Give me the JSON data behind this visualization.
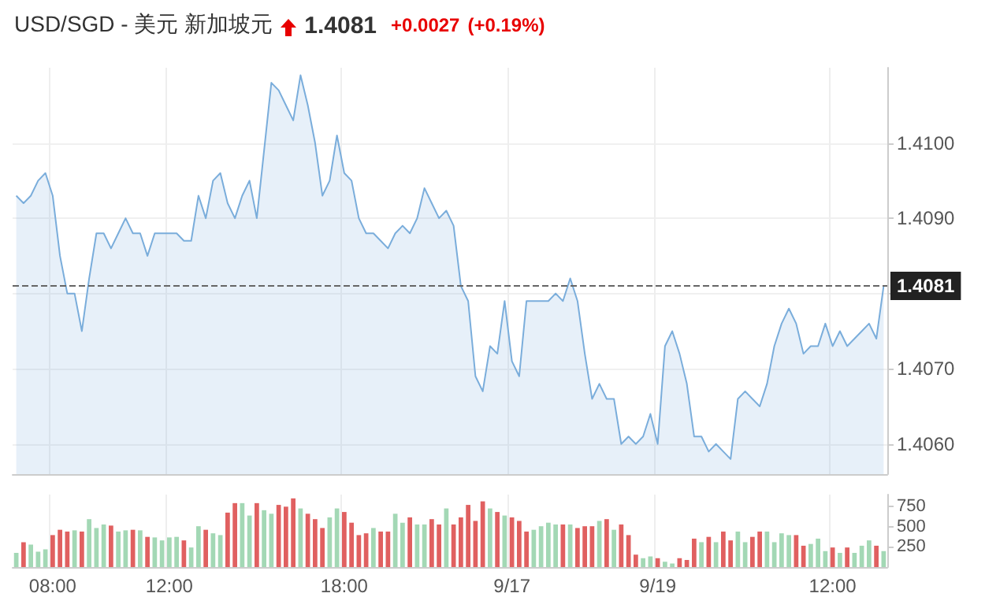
{
  "chart_data": [
    {
      "type": "area",
      "title": "USD/SGD - 美元 新加坡元",
      "annotations": [
        "1.4081",
        "+0.0027",
        "(+0.19%)"
      ],
      "categories": [
        null,
        null,
        null,
        null,
        null,
        null,
        null,
        null,
        null,
        null,
        null,
        null,
        null,
        null,
        null,
        null,
        null,
        null,
        null,
        null,
        null,
        null,
        null,
        null,
        null,
        null,
        null,
        null,
        null,
        null,
        null,
        null,
        null,
        null,
        null,
        null,
        null,
        null,
        null,
        null,
        null,
        null,
        null,
        null,
        null,
        null,
        null,
        null,
        null,
        null,
        null,
        null,
        null,
        null,
        null,
        null,
        null,
        null,
        null,
        null,
        null,
        null,
        null,
        null,
        null,
        null,
        null,
        null,
        null,
        null,
        null,
        null,
        null,
        null,
        null,
        null,
        null,
        null,
        null,
        null,
        null,
        null,
        null,
        null,
        null,
        null,
        null,
        null,
        null,
        null,
        null,
        null,
        null,
        null,
        null,
        null,
        null,
        null,
        null,
        null,
        null,
        null,
        null,
        null,
        null,
        null,
        null,
        null,
        null,
        null,
        null,
        null,
        null,
        null,
        null,
        null,
        null,
        null,
        null,
        null
      ],
      "values": [
        1.4093,
        1.4092,
        1.4093,
        1.4095,
        1.4096,
        1.4093,
        1.4085,
        1.408,
        1.408,
        1.4075,
        1.4082,
        1.4088,
        1.4088,
        1.4086,
        1.4088,
        1.409,
        1.4088,
        1.4088,
        1.4085,
        1.4088,
        1.4088,
        1.4088,
        1.4088,
        1.4087,
        1.4087,
        1.4093,
        1.409,
        1.4095,
        1.4096,
        1.4092,
        1.409,
        1.4093,
        1.4095,
        1.409,
        1.4099,
        1.4108,
        1.4107,
        1.4105,
        1.4103,
        1.4109,
        1.4105,
        1.41,
        1.4093,
        1.4095,
        1.4101,
        1.4096,
        1.4095,
        1.409,
        1.4088,
        1.4088,
        1.4087,
        1.4086,
        1.4088,
        1.4089,
        1.4088,
        1.409,
        1.4094,
        1.4092,
        1.409,
        1.4091,
        1.4089,
        1.4081,
        1.4079,
        1.4069,
        1.4067,
        1.4073,
        1.4072,
        1.4079,
        1.4071,
        1.4069,
        1.4079,
        1.4079,
        1.4079,
        1.4079,
        1.408,
        1.4079,
        1.4082,
        1.4079,
        1.4072,
        1.4066,
        1.4068,
        1.4066,
        1.4066,
        1.406,
        1.4061,
        1.406,
        1.4061,
        1.4064,
        1.406,
        1.4073,
        1.4075,
        1.4072,
        1.4068,
        1.4061,
        1.4061,
        1.4059,
        1.406,
        1.4059,
        1.4058,
        1.4066,
        1.4067,
        1.4066,
        1.4065,
        1.4068,
        1.4073,
        1.4076,
        1.4078,
        1.4076,
        1.4072,
        1.4073,
        1.4073,
        1.4076,
        1.4073,
        1.4075,
        1.4073,
        1.4074,
        1.4075,
        1.4076,
        1.4074,
        1.4081
      ],
      "color": "#7aaddb",
      "ylim": [
        1.4056,
        1.411
      ],
      "yticks": [
        {
          "value": 1.406,
          "label": "1.4060"
        },
        {
          "value": 1.407,
          "label": "1.4070"
        },
        {
          "value": 1.408,
          "label": null
        },
        {
          "value": 1.409,
          "label": "1.4090"
        },
        {
          "value": 1.41,
          "label": "1.4100"
        }
      ],
      "grid": true,
      "tick_labels": "y",
      "ref_lines": [
        {
          "axis": "y",
          "value": 1.4081,
          "label": "1.4081",
          "color": "#666666",
          "line_style": "dashed"
        }
      ]
    },
    {
      "type": "bar",
      "categories": [
        null,
        null,
        null,
        null,
        null,
        "08:00",
        null,
        null,
        null,
        null,
        null,
        null,
        null,
        null,
        null,
        null,
        null,
        null,
        null,
        null,
        null,
        "12:00",
        null,
        null,
        null,
        null,
        null,
        null,
        null,
        null,
        null,
        null,
        null,
        null,
        null,
        null,
        null,
        null,
        null,
        null,
        null,
        null,
        null,
        null,
        null,
        "18:00",
        null,
        null,
        null,
        null,
        null,
        null,
        null,
        null,
        null,
        null,
        null,
        null,
        null,
        null,
        null,
        null,
        null,
        null,
        null,
        null,
        null,
        null,
        "9/17",
        null,
        null,
        null,
        null,
        null,
        null,
        null,
        null,
        null,
        null,
        null,
        null,
        null,
        null,
        null,
        null,
        null,
        null,
        null,
        "9/19",
        null,
        null,
        null,
        null,
        null,
        null,
        null,
        null,
        null,
        null,
        null,
        null,
        null,
        null,
        null,
        null,
        null,
        null,
        null,
        null,
        null,
        null,
        null,
        "12:00",
        null,
        null,
        null,
        null,
        null,
        null,
        null
      ],
      "values": [
        176,
        309,
        279,
        191,
        220,
        397,
        463,
        441,
        456,
        441,
        595,
        485,
        529,
        515,
        441,
        456,
        463,
        456,
        375,
        368,
        331,
        368,
        375,
        331,
        243,
        507,
        463,
        419,
        397,
        676,
        794,
        794,
        640,
        794,
        706,
        662,
        772,
        750,
        853,
        728,
        662,
        595,
        485,
        617,
        728,
        684,
        551,
        397,
        419,
        485,
        441,
        441,
        662,
        551,
        617,
        529,
        529,
        595,
        529,
        728,
        529,
        617,
        772,
        573,
        816,
        728,
        684,
        640,
        617,
        573,
        441,
        463,
        507,
        551,
        529,
        529,
        529,
        485,
        507,
        507,
        573,
        595,
        463,
        529,
        397,
        154,
        110,
        132,
        110,
        66,
        44,
        110,
        88,
        353,
        309,
        375,
        309,
        441,
        331,
        441,
        309,
        375,
        441,
        441,
        309,
        419,
        397,
        397,
        265,
        287,
        353,
        198,
        243,
        176,
        243,
        176,
        265,
        331,
        265,
        198
      ],
      "colors": [
        "#a3d8b5",
        "#e06060",
        "#a3d8b5",
        "#a3d8b5",
        "#a3d8b5",
        "#e06060",
        "#e06060",
        "#e06060",
        "#a3d8b5",
        "#e06060",
        "#a3d8b5",
        "#a3d8b5",
        "#a3d8b5",
        "#e06060",
        "#a3d8b5",
        "#a3d8b5",
        "#e06060",
        "#a3d8b5",
        "#e06060",
        "#a3d8b5",
        "#a3d8b5",
        "#a3d8b5",
        "#a3d8b5",
        "#e06060",
        "#a3d8b5",
        "#a3d8b5",
        "#e06060",
        "#a3d8b5",
        "#a3d8b5",
        "#e06060",
        "#e06060",
        "#a3d8b5",
        "#a3d8b5",
        "#e06060",
        "#a3d8b5",
        "#a3d8b5",
        "#e06060",
        "#e06060",
        "#e06060",
        "#a3d8b5",
        "#e06060",
        "#e06060",
        "#e06060",
        "#a3d8b5",
        "#a3d8b5",
        "#e06060",
        "#e06060",
        "#e06060",
        "#e06060",
        "#a3d8b5",
        "#e06060",
        "#e06060",
        "#a3d8b5",
        "#a3d8b5",
        "#e06060",
        "#a3d8b5",
        "#a3d8b5",
        "#e06060",
        "#e06060",
        "#a3d8b5",
        "#e06060",
        "#e06060",
        "#e06060",
        "#e06060",
        "#e06060",
        "#a3d8b5",
        "#e06060",
        "#a3d8b5",
        "#e06060",
        "#e06060",
        "#e06060",
        "#a3d8b5",
        "#a3d8b5",
        "#a3d8b5",
        "#a3d8b5",
        "#e06060",
        "#a3d8b5",
        "#e06060",
        "#e06060",
        "#e06060",
        "#a3d8b5",
        "#e06060",
        "#a3d8b5",
        "#e06060",
        "#e06060",
        "#e06060",
        "#a3d8b5",
        "#a3d8b5",
        "#e06060",
        "#a3d8b5",
        "#a3d8b5",
        "#e06060",
        "#e06060",
        "#e06060",
        "#a3d8b5",
        "#e06060",
        "#a3d8b5",
        "#e06060",
        "#e06060",
        "#a3d8b5",
        "#a3d8b5",
        "#e06060",
        "#e06060",
        "#a3d8b5",
        "#a3d8b5",
        "#a3d8b5",
        "#a3d8b5",
        "#e06060",
        "#e06060",
        "#a3d8b5",
        "#a3d8b5",
        "#a3d8b5",
        "#e06060",
        "#a3d8b5",
        "#e06060",
        "#a3d8b5",
        "#a3d8b5",
        "#a3d8b5",
        "#e06060",
        "#a3d8b5"
      ],
      "ylim": [
        0,
        900
      ],
      "yticks": [
        250,
        500,
        750
      ],
      "grid": "x"
    }
  ]
}
